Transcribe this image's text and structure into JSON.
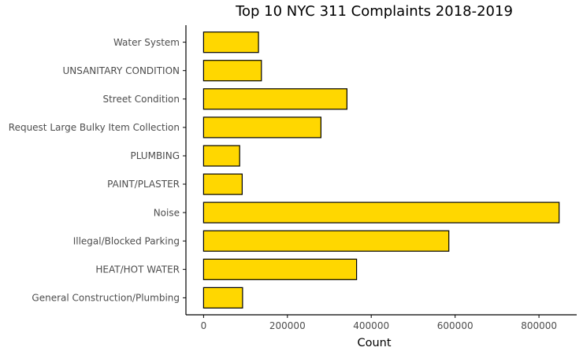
{
  "chart_data": {
    "type": "bar",
    "orientation": "horizontal",
    "title": "Top 10 NYC 311 Complaints 2018-2019",
    "xlabel": "Count",
    "ylabel": "",
    "categories": [
      "General Construction/Plumbing",
      "HEAT/HOT WATER",
      "Illegal/Blocked Parking",
      "Noise",
      "PAINT/PLASTER",
      "PLUMBING",
      "Request Large Bulky Item Collection",
      "Street Condition",
      "UNSANITARY CONDITION",
      "Water System"
    ],
    "values": [
      93000,
      365000,
      585000,
      848000,
      92000,
      86000,
      280000,
      342000,
      138000,
      131000
    ],
    "xlim": [
      -42000,
      890000
    ],
    "xticks": [
      0,
      200000,
      400000,
      600000,
      800000
    ],
    "xtick_labels": [
      "0",
      "200000",
      "400000",
      "600000",
      "800000"
    ],
    "bar_color": "#FFD700",
    "grid": false,
    "legend": "none"
  }
}
